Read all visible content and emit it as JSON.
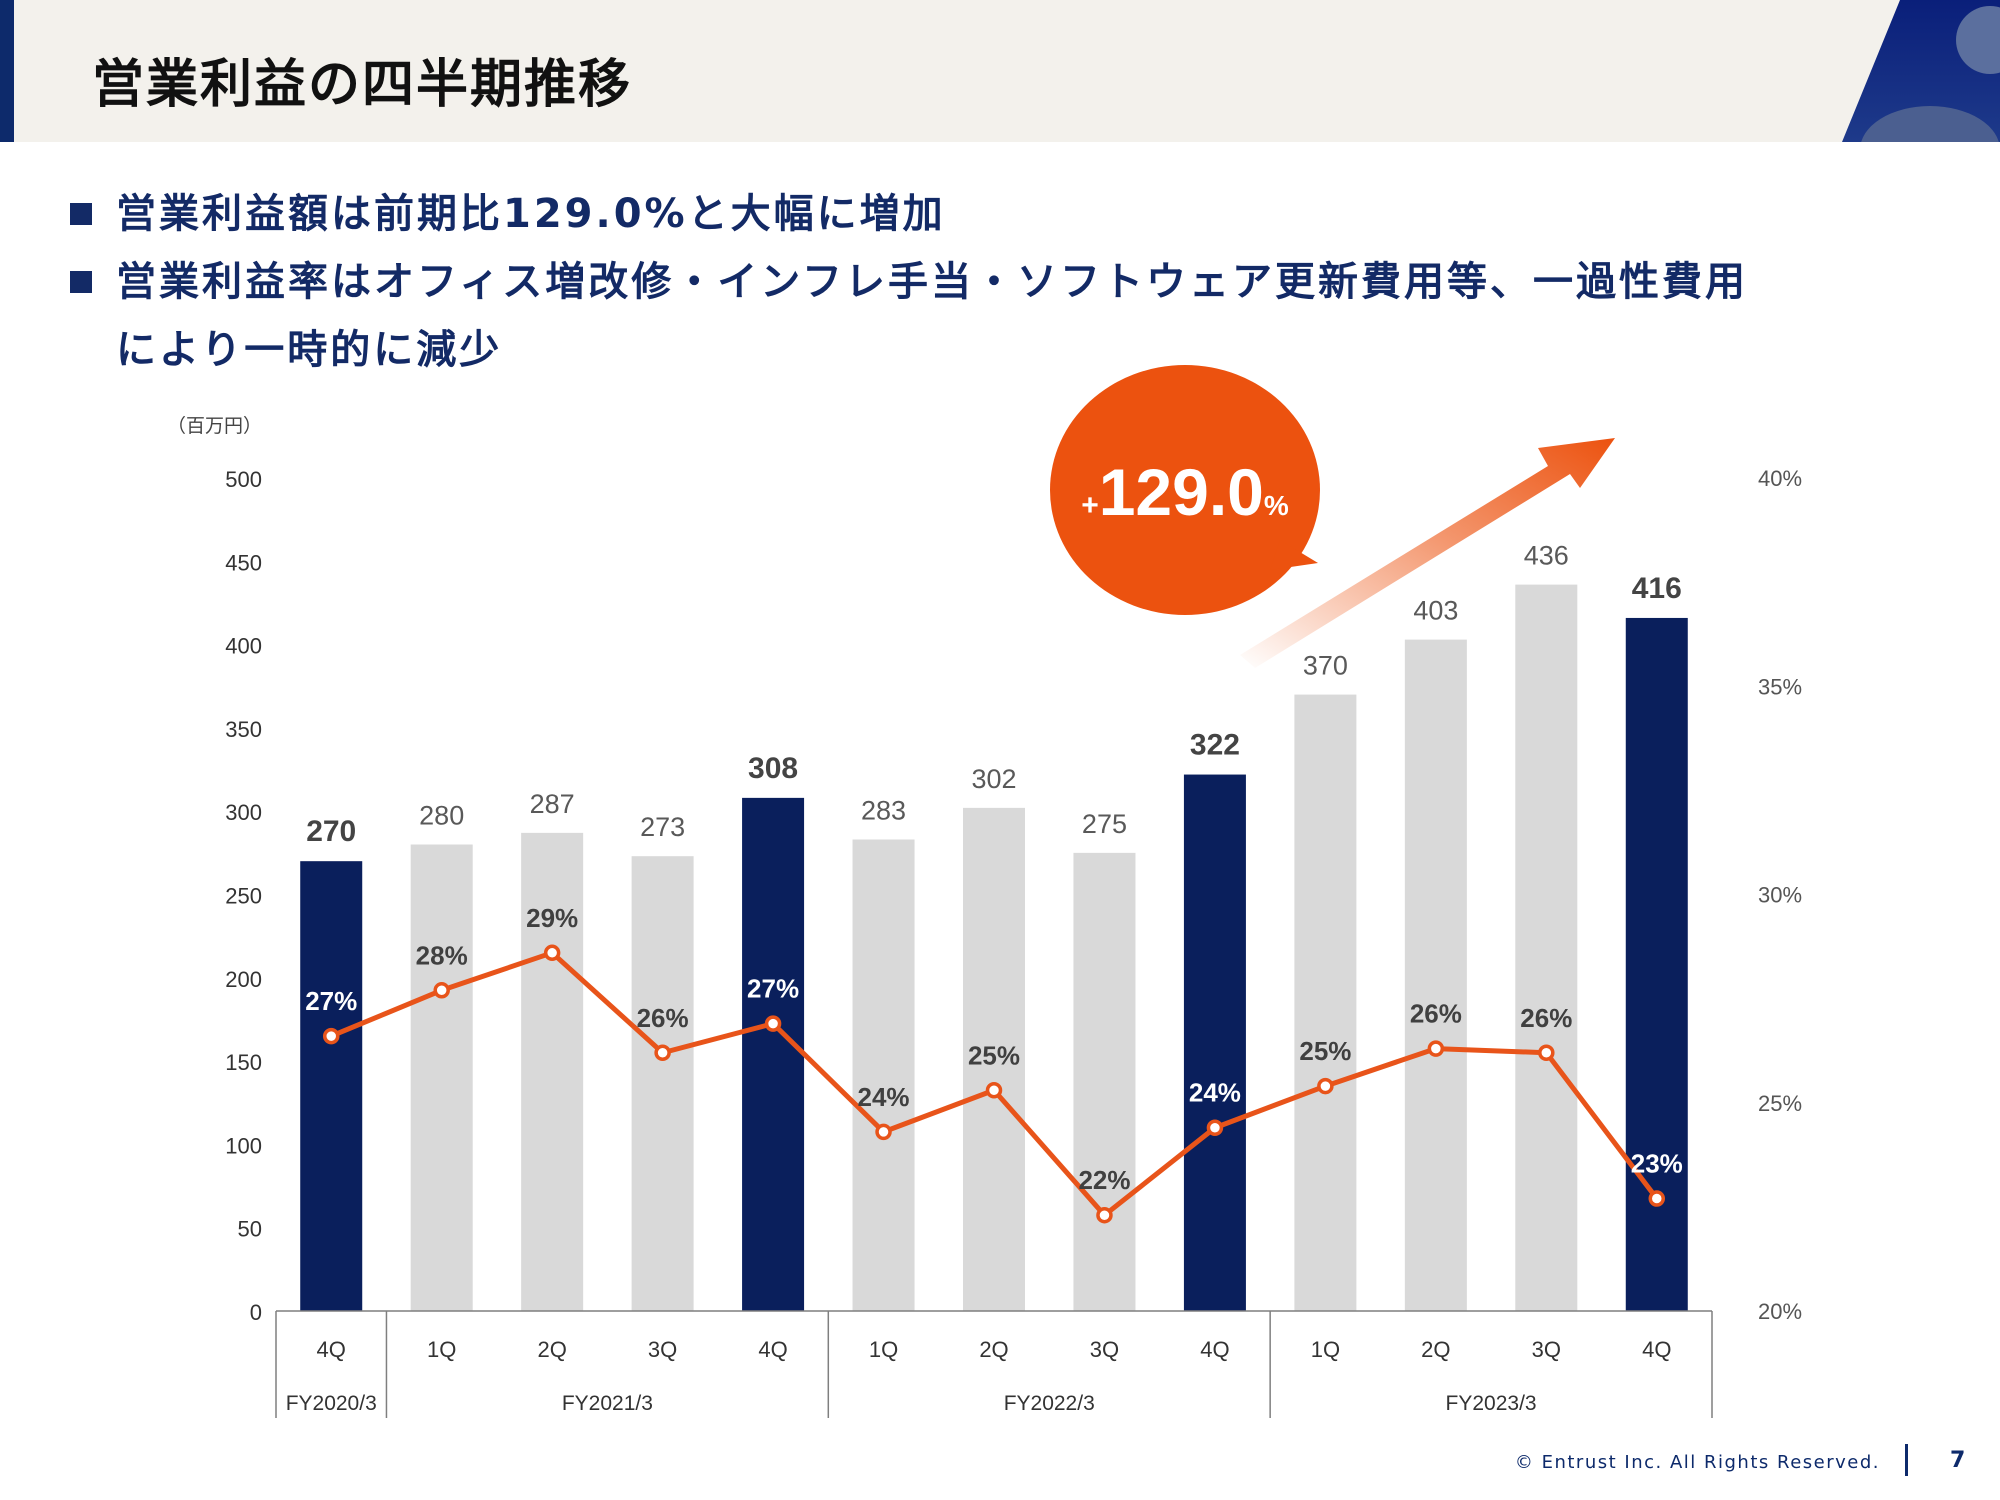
{
  "header": {
    "title": "営業利益の四半期推移"
  },
  "bullets": [
    "営業利益額は前期比129.0%と大幅に増加",
    "営業利益率はオフィス増改修・インフレ手当・ソフトウェア更新費用等、一過性費用により一時的に減少"
  ],
  "callout": {
    "plus": "+",
    "value": "129.0",
    "unit": "%"
  },
  "colors": {
    "navy": "#0a1f5c",
    "gray_bar": "#d9d9d9",
    "orange": "#e8541a",
    "callout": "#ec520f"
  },
  "chart_data": {
    "type": "bar",
    "y_unit_label": "（百万円）",
    "ylim": [
      0,
      500
    ],
    "y_ticks": [
      0,
      50,
      100,
      150,
      200,
      250,
      300,
      350,
      400,
      450,
      500
    ],
    "y2lim": [
      20,
      40
    ],
    "y2_ticks": [
      "20%",
      "25%",
      "30%",
      "35%",
      "40%"
    ],
    "categories": [
      "4Q",
      "1Q",
      "2Q",
      "3Q",
      "4Q",
      "1Q",
      "2Q",
      "3Q",
      "4Q",
      "1Q",
      "2Q",
      "3Q",
      "4Q"
    ],
    "groups": [
      {
        "label": "FY2020/3",
        "count": 1
      },
      {
        "label": "FY2021/3",
        "count": 4
      },
      {
        "label": "FY2022/3",
        "count": 4
      },
      {
        "label": "FY2023/3",
        "count": 4
      }
    ],
    "series": [
      {
        "type": "bar",
        "values": [
          270,
          280,
          287,
          273,
          308,
          283,
          302,
          275,
          322,
          370,
          403,
          436,
          416
        ],
        "highlight": [
          true,
          false,
          false,
          false,
          true,
          false,
          false,
          false,
          true,
          false,
          false,
          false,
          true
        ]
      },
      {
        "type": "line",
        "axis": "right",
        "values": [
          26.6,
          27.7,
          28.6,
          26.2,
          26.9,
          24.3,
          25.3,
          22.3,
          24.4,
          25.4,
          26.3,
          26.2,
          22.7
        ],
        "labels": [
          "27%",
          "28%",
          "29%",
          "26%",
          "27%",
          "24%",
          "25%",
          "22%",
          "24%",
          "25%",
          "26%",
          "26%",
          "23%"
        ]
      }
    ]
  },
  "footer": {
    "copyright": "© Entrust Inc. All Rights Reserved.",
    "page": "7"
  }
}
